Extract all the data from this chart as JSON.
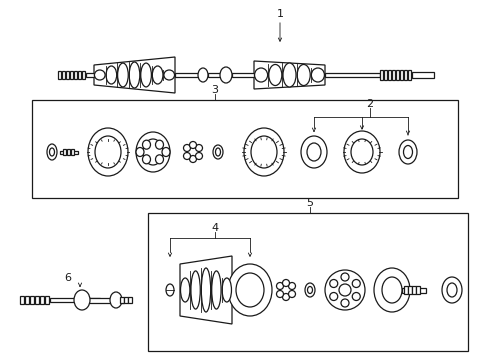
{
  "bg_color": "#ffffff",
  "line_color": "#1a1a1a",
  "label_1": "1",
  "label_2": "2",
  "label_3": "3",
  "label_4": "4",
  "label_5": "5",
  "label_6": "6",
  "figw": 4.9,
  "figh": 3.6,
  "dpi": 100
}
